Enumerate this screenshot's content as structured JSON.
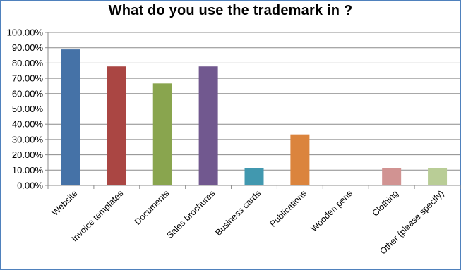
{
  "chart_data": {
    "type": "bar",
    "title": "What do you use the trademark in ?",
    "categories": [
      "Website",
      "Invoice templates",
      "Documents",
      "Sales brochures",
      "Business cards",
      "Publications",
      "Wooden pens",
      "Clothing",
      "Other (please specify)"
    ],
    "values": [
      88.89,
      77.78,
      66.67,
      77.78,
      11.11,
      33.33,
      0,
      11.11,
      11.11
    ],
    "colors": [
      "#4572a7",
      "#aa4643",
      "#89a54e",
      "#71588f",
      "#4198af",
      "#db843d",
      "#93a9cf",
      "#d19392",
      "#b9cd96"
    ],
    "ylim": [
      0,
      100
    ],
    "yticks": [
      "0.00%",
      "10.00%",
      "20.00%",
      "30.00%",
      "40.00%",
      "50.00%",
      "60.00%",
      "70.00%",
      "80.00%",
      "90.00%",
      "100.00%"
    ],
    "grid": true,
    "legend": "none",
    "xlabel": "",
    "ylabel": ""
  }
}
